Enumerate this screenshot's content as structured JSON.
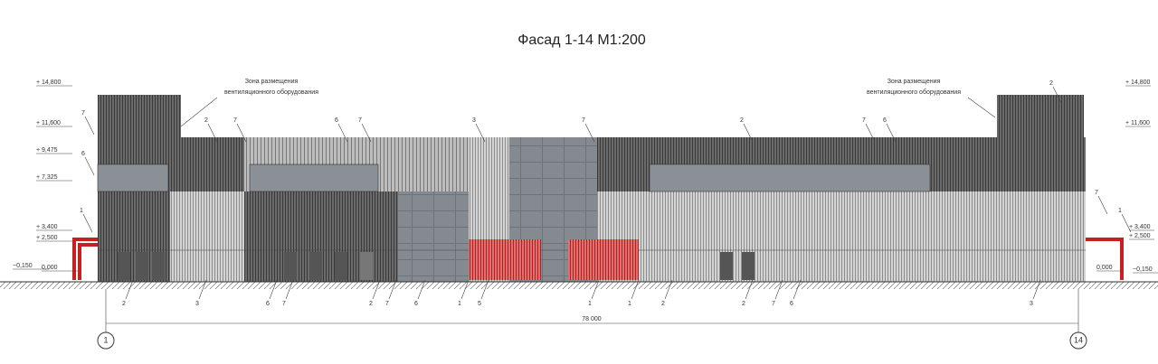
{
  "title": "Фасад 1-14 М1:200",
  "levels_left": [
    "+ 14,800",
    "+ 11,600",
    "+ 9,475",
    "+ 7,325",
    "+ 3,400",
    "+ 2,500",
    "−0,150",
    "0,000"
  ],
  "levels_right": [
    "+ 14,800",
    "+ 11,600",
    "+ 3,400",
    "+ 2,500",
    "0,000",
    "−0,150"
  ],
  "notes": [
    [
      "Зона размещения",
      "вентиляционного оборудования"
    ],
    [
      "Зона размещения",
      "вентиляционного оборудования"
    ]
  ],
  "callouts_top": [
    "7",
    "6",
    "2",
    "7",
    "6",
    "7",
    "3",
    "7",
    "2",
    "7",
    "6",
    "2",
    "7",
    "1",
    "1"
  ],
  "callouts_bottom": [
    "2",
    "3",
    "6",
    "7",
    "2",
    "7",
    "6",
    "1",
    "5",
    "1",
    "1",
    "2",
    "2",
    "7",
    "6",
    "3"
  ],
  "dimension": "78 000",
  "axes": [
    "1",
    "14"
  ]
}
